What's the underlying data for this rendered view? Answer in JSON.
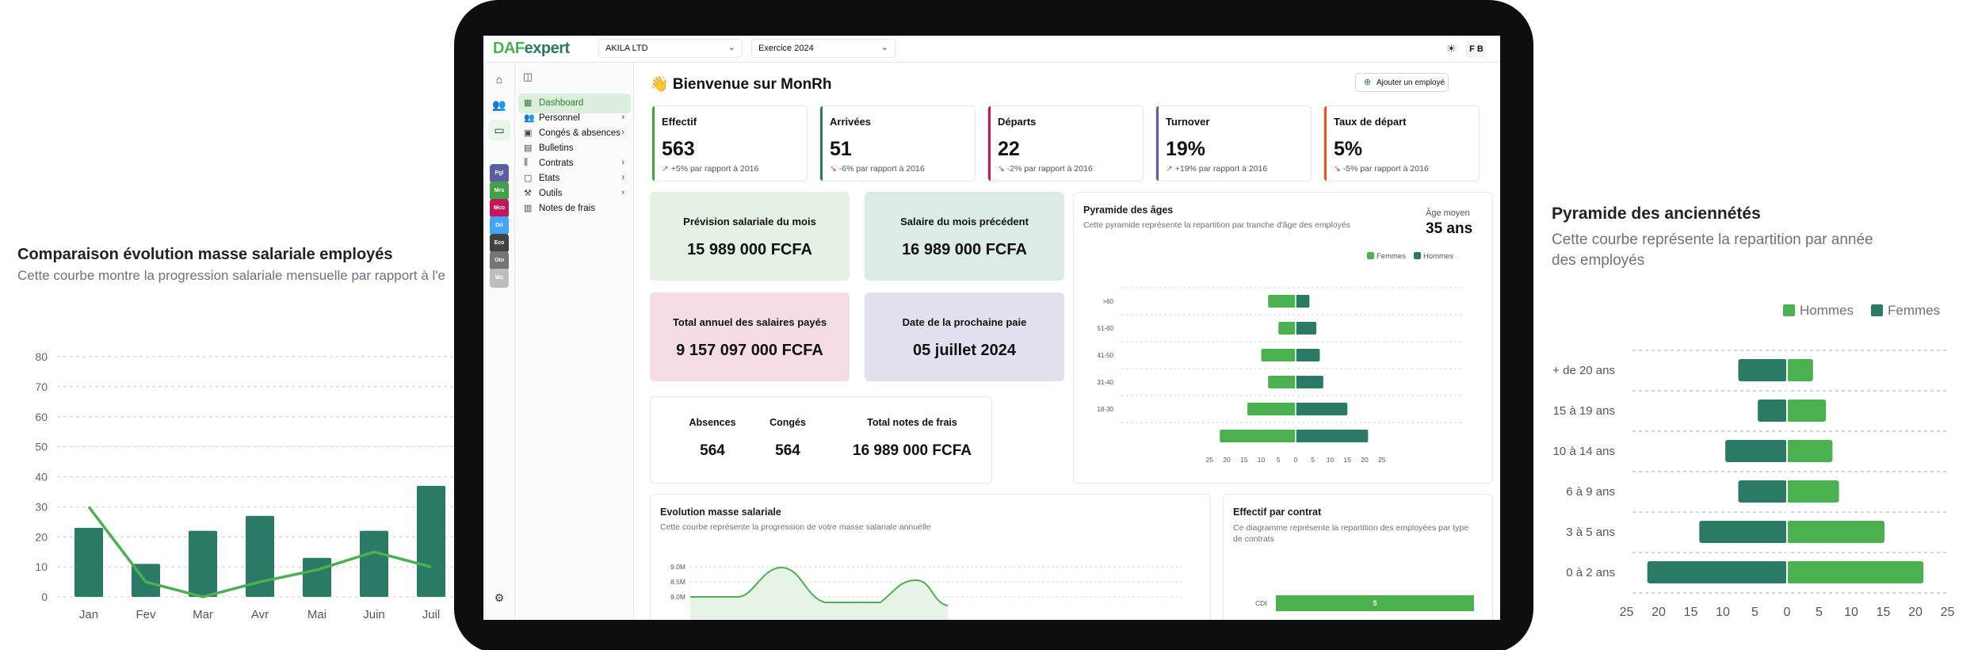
{
  "left_panel": {
    "title": "Comparaison évolution masse salariale employés",
    "subtitle": "Cette courbe montre la progression salariale mensuelle par rapport à l'e"
  },
  "right_panel": {
    "title": "Pyramide des anciennétés",
    "subtitle": "Cette courbe représente la repartition par année des employés",
    "legend": [
      "Hommes",
      "Femmes"
    ]
  },
  "app": {
    "logo_a": "DAF",
    "logo_b": "expert",
    "company_select": "AKILA LTD",
    "year_select": "Exercice 2024",
    "user_initials": "F B",
    "welcome": "👋 Bienvenue sur MonRh",
    "add_employee": "Ajouter un employé"
  },
  "workspaces": [
    {
      "label": "Pgl",
      "color": "#5b5ea6"
    },
    {
      "label": "Mrs",
      "color": "#43a047"
    },
    {
      "label": "Mco",
      "color": "#c2185b"
    },
    {
      "label": "Dri",
      "color": "#42a5f5"
    },
    {
      "label": "Eco",
      "color": "#424242"
    },
    {
      "label": "Oto",
      "color": "#757575"
    },
    {
      "label": "Wc",
      "color": "#bdbdbd"
    }
  ],
  "nav": [
    {
      "label": "Dashboard",
      "icon": "grid-icon",
      "glyph": "▦",
      "active": true,
      "chevron": false
    },
    {
      "label": "Personnel",
      "icon": "users-icon",
      "glyph": "👥",
      "active": false,
      "chevron": true
    },
    {
      "label": "Congés & absences",
      "icon": "calendar-icon",
      "glyph": "▣",
      "active": false,
      "chevron": true
    },
    {
      "label": "Bulletins",
      "icon": "document-icon",
      "glyph": "▤",
      "active": false,
      "chevron": false
    },
    {
      "label": "Contrats",
      "icon": "contract-icon",
      "glyph": "⫼",
      "active": false,
      "chevron": true
    },
    {
      "label": "Etats",
      "icon": "report-icon",
      "glyph": "▢",
      "active": false,
      "chevron": true
    },
    {
      "label": "Outils",
      "icon": "tools-icon",
      "glyph": "⚒",
      "active": false,
      "chevron": true
    },
    {
      "label": "Notes de frais",
      "icon": "receipt-icon",
      "glyph": "▥",
      "active": false,
      "chevron": false
    }
  ],
  "kpis": [
    {
      "label": "Effectif",
      "value": "563",
      "arrow": "↗",
      "trend": "up",
      "change": "+5% par rapport à 2016",
      "color": "#43a047"
    },
    {
      "label": "Arrivées",
      "value": "51",
      "arrow": "↘",
      "trend": "down",
      "change": "-6% par rapport à 2016",
      "color": "#2b7a66"
    },
    {
      "label": "Départs",
      "value": "22",
      "arrow": "↘",
      "trend": "down",
      "change": "-2% par rapport à 2016",
      "color": "#c2185b"
    },
    {
      "label": "Turnover",
      "value": "19%",
      "arrow": "↗",
      "trend": "up",
      "change": "+19% par rapport à 2016",
      "color": "#5b5ea6"
    },
    {
      "label": "Taux de départ",
      "value": "5%",
      "arrow": "↘",
      "trend": "down",
      "change": "-5% par rapport à 2016",
      "color": "#f4511e"
    }
  ],
  "salary_cards": [
    {
      "label": "Prévision salariale du mois",
      "value": "15 989 000 FCFA",
      "bg": "#e3f2e3"
    },
    {
      "label": "Salaire du mois précédent",
      "value": "16 989 000 FCFA",
      "bg": "#dcebe6"
    },
    {
      "label": "Total annuel des salaires payés",
      "value": "9 157 097 000 FCFA",
      "bg": "#f5dde3"
    },
    {
      "label": "Date de la prochaine paie",
      "value": "05 juillet 2024",
      "bg": "#e0e1ee"
    }
  ],
  "totals": [
    {
      "label": "Absences",
      "value": "564"
    },
    {
      "label": "Congés",
      "value": "564"
    },
    {
      "label": "Total notes de frais",
      "value": "16 989 000 FCFA"
    }
  ],
  "age_pyramid": {
    "title": "Pyramide des âges",
    "subtitle": "Cette pyramide représente la repartition par tranche d'âge des employés",
    "average_label": "Âge moyen",
    "average_value": "35 ans",
    "legend": [
      "Femmes",
      "Hommes"
    ]
  },
  "salary_evolution": {
    "title": "Evolution masse salariale",
    "subtitle": "Cette courbe représente la progression de votre masse salariale annuelle"
  },
  "contracts": {
    "title": "Effectif par contrat",
    "subtitle": "Ce diagramme représente la repartition des employées par type de contrats",
    "category": "CDI",
    "value_label": "5"
  },
  "chart_data": [
    {
      "type": "bar",
      "title": "Comparaison évolution masse salariale employés",
      "categories": [
        "Jan",
        "Fev",
        "Mar",
        "Avr",
        "Mai",
        "Juin",
        "Juil"
      ],
      "series": [
        {
          "values": [
            23,
            11,
            22,
            27,
            13,
            22,
            37
          ]
        },
        {
          "values": [
            30,
            5,
            0,
            5,
            9,
            15,
            10
          ]
        }
      ],
      "yticks": [
        0,
        10,
        20,
        30,
        40,
        50,
        60,
        70,
        80
      ],
      "ylim": [
        0,
        80
      ],
      "colors": [
        "#2b7a66",
        "#4caf50"
      ]
    },
    {
      "type": "bar",
      "title": "Pyramide des anciennétés",
      "orientation": "horizontal-diverging",
      "categories": [
        "+ de 20 ans",
        "15 à 19 ans",
        "10 à 14 ans",
        "6 à 9 ans",
        "3 à 5 ans",
        "0 à 2 ans"
      ],
      "series": [
        {
          "name": "Femmes",
          "side": "left",
          "values": [
            7.5,
            4.5,
            9.5,
            7.5,
            13.5,
            21.5
          ]
        },
        {
          "name": "Hommes",
          "side": "right",
          "values": [
            4,
            6,
            7,
            8,
            15,
            21
          ]
        }
      ],
      "xticks": [
        25,
        20,
        15,
        10,
        5,
        0,
        5,
        10,
        15,
        20,
        25
      ],
      "xlim": [
        -25,
        25
      ],
      "colors": {
        "Femmes": "#2b7a66",
        "Hommes": "#4caf50"
      }
    },
    {
      "type": "bar",
      "title": "Pyramide des âges",
      "orientation": "horizontal-diverging",
      "categories": [
        ">60",
        "51-60",
        "41-50",
        "31-40",
        "18-30"
      ],
      "series": [
        {
          "name": "Femmes",
          "side": "left",
          "values": [
            8,
            5,
            10,
            8,
            14
          ]
        },
        {
          "name": "Hommes",
          "side": "right",
          "values": [
            4,
            6,
            7,
            8,
            15
          ]
        }
      ],
      "extra_bottom_row": {
        "left": 22,
        "right": 21
      },
      "xticks": [
        25,
        20,
        15,
        10,
        5,
        0,
        5,
        10,
        15,
        20,
        25
      ],
      "xlim": [
        -25,
        25
      ],
      "colors": {
        "Femmes": "#4caf50",
        "Hommes": "#2b7a66"
      }
    },
    {
      "type": "area",
      "title": "Evolution masse salariale",
      "yticks": [
        "9.0M",
        "8.5M",
        "8.0M"
      ]
    }
  ]
}
